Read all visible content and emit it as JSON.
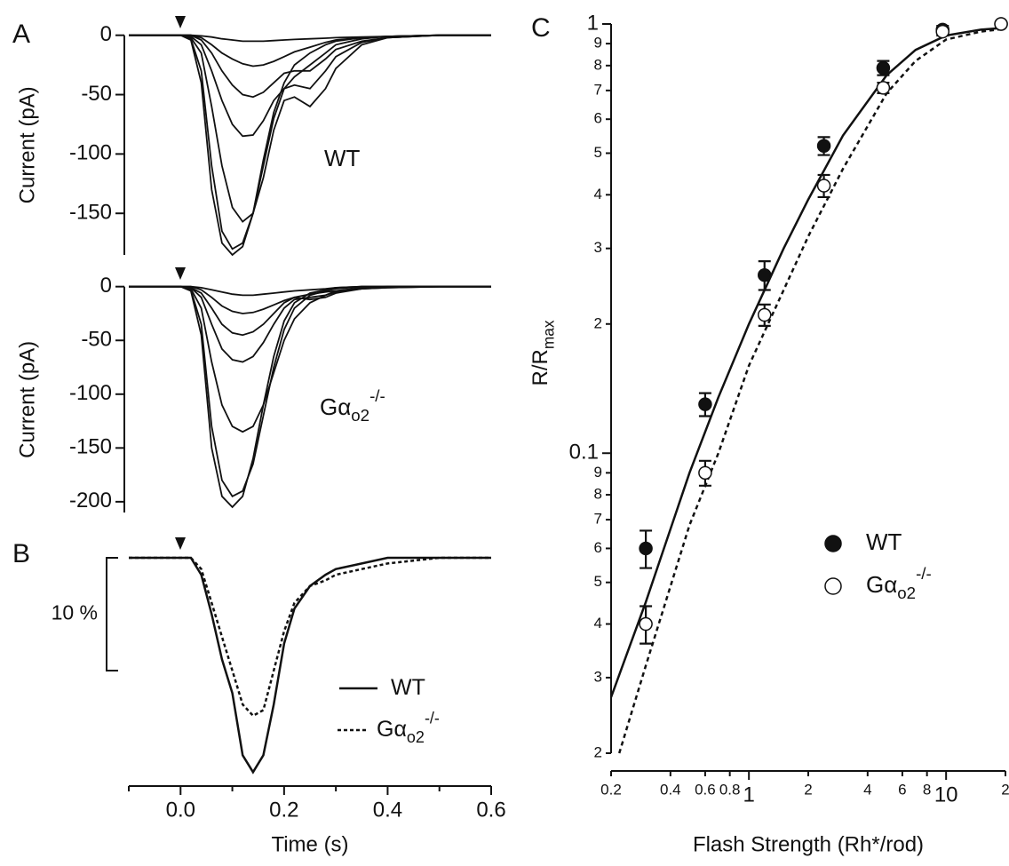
{
  "chart_data": [
    {
      "type": "line",
      "panel_label": "A",
      "y_label": "Current (pA)",
      "color": "#111",
      "annotation": {
        "text": "WT"
      },
      "xlim": [
        -0.1,
        0.6
      ],
      "ylim": [
        -185,
        8
      ],
      "yticks": [
        0,
        -50,
        -100,
        -150
      ],
      "x": [
        -0.1,
        -0.05,
        0,
        0.02,
        0.04,
        0.06,
        0.08,
        0.1,
        0.12,
        0.14,
        0.16,
        0.18,
        0.2,
        0.22,
        0.25,
        0.28,
        0.3,
        0.35,
        0.4,
        0.5,
        0.6
      ],
      "series": [
        {
          "values": [
            0,
            0,
            0,
            0,
            -0.5,
            -1.5,
            -3,
            -4,
            -5,
            -5,
            -5,
            -4.5,
            -4,
            -3.5,
            -3,
            -2.5,
            -2,
            -1.5,
            -1,
            0,
            0
          ]
        },
        {
          "values": [
            0,
            0,
            0,
            0,
            -2,
            -8,
            -15,
            -20,
            -24,
            -26,
            -25,
            -22,
            -18,
            -14,
            -10,
            -6,
            -4,
            -2,
            -1,
            0,
            0
          ]
        },
        {
          "values": [
            0,
            0,
            0,
            0,
            -4,
            -15,
            -30,
            -42,
            -50,
            -52,
            -48,
            -40,
            -32,
            -30,
            -30,
            -20,
            -12,
            -5,
            -2,
            0,
            0
          ]
        },
        {
          "values": [
            0,
            0,
            0,
            -1,
            -8,
            -30,
            -55,
            -75,
            -85,
            -84,
            -72,
            -55,
            -45,
            -42,
            -45,
            -30,
            -18,
            -6,
            -2,
            0,
            0
          ]
        },
        {
          "values": [
            0,
            0,
            0,
            -2,
            -15,
            -60,
            -110,
            -145,
            -157,
            -150,
            -120,
            -80,
            -55,
            -52,
            -60,
            -45,
            -28,
            -8,
            -2,
            0,
            0
          ]
        },
        {
          "values": [
            0,
            0,
            0,
            -3,
            -30,
            -110,
            -165,
            -180,
            -175,
            -150,
            -110,
            -70,
            -45,
            -35,
            -25,
            -15,
            -8,
            -3,
            -1,
            0,
            0
          ]
        },
        {
          "values": [
            0,
            0,
            0,
            -4,
            -40,
            -130,
            -175,
            -185,
            -178,
            -150,
            -105,
            -65,
            -40,
            -25,
            -15,
            -8,
            -5,
            -2,
            -1,
            0,
            0
          ]
        }
      ]
    },
    {
      "type": "line",
      "y_label": "Current (pA)",
      "color": "#111",
      "annotation": {
        "text": "Gα",
        "sub": "o2",
        "sup": "-/-"
      },
      "xlim": [
        -0.1,
        0.6
      ],
      "ylim": [
        -210,
        8
      ],
      "yticks": [
        0,
        -50,
        -100,
        -150,
        -200
      ],
      "x": [
        -0.1,
        -0.05,
        0,
        0.02,
        0.04,
        0.06,
        0.08,
        0.1,
        0.12,
        0.14,
        0.16,
        0.18,
        0.2,
        0.22,
        0.25,
        0.28,
        0.3,
        0.35,
        0.4,
        0.5,
        0.6
      ],
      "series": [
        {
          "values": [
            0,
            0,
            0,
            0,
            -1,
            -3,
            -5,
            -7,
            -8,
            -8,
            -7,
            -6,
            -5,
            -4,
            -3,
            -2,
            -1,
            0,
            0,
            0,
            0
          ]
        },
        {
          "values": [
            0,
            0,
            0,
            0,
            -3,
            -10,
            -18,
            -23,
            -25,
            -24,
            -21,
            -17,
            -13,
            -10,
            -7,
            -5,
            -4,
            -2,
            -1,
            0,
            0
          ]
        },
        {
          "values": [
            0,
            0,
            0,
            -1,
            -6,
            -20,
            -35,
            -43,
            -45,
            -42,
            -35,
            -25,
            -15,
            -10,
            -12,
            -10,
            -6,
            -2,
            -1,
            0,
            0
          ]
        },
        {
          "values": [
            0,
            0,
            0,
            -1,
            -10,
            -35,
            -58,
            -68,
            -70,
            -65,
            -52,
            -35,
            -20,
            -12,
            -10,
            -8,
            -5,
            -2,
            0,
            0,
            0
          ]
        },
        {
          "values": [
            0,
            0,
            0,
            -2,
            -20,
            -70,
            -110,
            -130,
            -135,
            -130,
            -110,
            -80,
            -50,
            -30,
            -15,
            -8,
            -4,
            -1,
            0,
            0,
            0
          ]
        },
        {
          "values": [
            0,
            0,
            0,
            -3,
            -35,
            -130,
            -180,
            -195,
            -190,
            -165,
            -120,
            -75,
            -40,
            -20,
            -8,
            -4,
            -2,
            0,
            0,
            0,
            0
          ]
        },
        {
          "values": [
            0,
            0,
            0,
            -4,
            -45,
            -150,
            -195,
            -205,
            -195,
            -160,
            -110,
            -65,
            -32,
            -15,
            -6,
            -3,
            -1,
            0,
            0,
            0,
            0
          ]
        }
      ]
    },
    {
      "type": "line",
      "panel_label": "B",
      "x_label": "Time (s)",
      "color": "#111",
      "scale_bar": {
        "value": 10,
        "label": "10 %"
      },
      "xlim": [
        -0.1,
        0.6
      ],
      "ylim": [
        -20,
        1.5
      ],
      "xticks": [
        {
          "value": 0,
          "label": "0.0"
        },
        0.2,
        0.4,
        0.6
      ],
      "xminorticks": [
        -0.1,
        0.1,
        0.3,
        0.5
      ],
      "x": [
        -0.1,
        -0.05,
        0,
        0.02,
        0.04,
        0.06,
        0.08,
        0.1,
        0.12,
        0.14,
        0.16,
        0.18,
        0.2,
        0.22,
        0.25,
        0.28,
        0.3,
        0.35,
        0.4,
        0.5,
        0.6
      ],
      "series": [
        {
          "name": "WT",
          "dash": false,
          "values": [
            0,
            0,
            0,
            0,
            -1.5,
            -5,
            -9,
            -12,
            -17.5,
            -19,
            -17.5,
            -13,
            -7.6,
            -4.5,
            -2.5,
            -1.5,
            -1,
            -0.5,
            0,
            0,
            0
          ]
        },
        {
          "name": "Gα",
          "name_sub": "o2",
          "name_sup": "-/-",
          "dash": true,
          "values": [
            0,
            0,
            0,
            0,
            -1,
            -4,
            -7,
            -10,
            -13,
            -14,
            -13.5,
            -10,
            -6.5,
            -4,
            -2.5,
            -2,
            -1.5,
            -1,
            -0.5,
            0,
            0
          ]
        }
      ]
    },
    {
      "type": "scatter",
      "panel_label": "C",
      "x_label": "Flash Strength (Rh*/rod)",
      "y_label": "R/R",
      "y_label_sub": "max",
      "color": "#111",
      "xscale": "log",
      "yscale": "log",
      "xlim": [
        0.2,
        20
      ],
      "ylim": [
        0.02,
        1
      ],
      "xticks": [
        0.2,
        0.4,
        0.6,
        0.8,
        1,
        2,
        4,
        6,
        8,
        10,
        {
          "value": 20,
          "label": "2"
        }
      ],
      "yticks": [
        {
          "value": 0.02,
          "label": "2"
        },
        {
          "value": 0.03,
          "label": "3"
        },
        {
          "value": 0.04,
          "label": "4"
        },
        {
          "value": 0.05,
          "label": "5"
        },
        {
          "value": 0.06,
          "label": "6"
        },
        {
          "value": 0.07,
          "label": "7"
        },
        {
          "value": 0.08,
          "label": "8"
        },
        {
          "value": 0.09,
          "label": "9"
        },
        0.1,
        {
          "value": 0.2,
          "label": "2"
        },
        {
          "value": 0.3,
          "label": "3"
        },
        {
          "value": 0.4,
          "label": "4"
        },
        {
          "value": 0.5,
          "label": "5"
        },
        {
          "value": 0.6,
          "label": "6"
        },
        {
          "value": 0.7,
          "label": "7"
        },
        {
          "value": 0.8,
          "label": "8"
        },
        {
          "value": 0.9,
          "label": "9"
        },
        1
      ],
      "series": [
        {
          "name": "WT",
          "marker": "filled",
          "x": [
            0.3,
            0.6,
            1.2,
            2.4,
            4.8,
            9.6,
            19
          ],
          "values": [
            0.06,
            0.13,
            0.26,
            0.52,
            0.79,
            0.97,
            1.0
          ],
          "errors": [
            0.006,
            0.008,
            0.02,
            0.025,
            0.03,
            0.02,
            0
          ]
        },
        {
          "name": "Gα",
          "name_sub": "o2",
          "name_sup": "-/-",
          "marker": "open",
          "x": [
            0.3,
            0.6,
            1.2,
            2.4,
            4.8,
            9.6,
            19
          ],
          "values": [
            0.04,
            0.09,
            0.21,
            0.42,
            0.71,
            0.96,
            1.0
          ],
          "errors": [
            0.004,
            0.006,
            0.012,
            0.025,
            0.02,
            0.02,
            0
          ]
        }
      ],
      "fits": [
        {
          "dash": false,
          "x": [
            0.2,
            0.3,
            0.5,
            0.7,
            1,
            1.5,
            2,
            3,
            5,
            7,
            10,
            15,
            20
          ],
          "values": [
            0.027,
            0.045,
            0.09,
            0.135,
            0.2,
            0.3,
            0.39,
            0.55,
            0.76,
            0.87,
            0.94,
            0.97,
            0.98
          ]
        },
        {
          "dash": true,
          "x": [
            0.22,
            0.3,
            0.5,
            0.7,
            1,
            1.5,
            2,
            3,
            5,
            7,
            10,
            15,
            20
          ],
          "values": [
            0.02,
            0.032,
            0.068,
            0.1,
            0.16,
            0.24,
            0.32,
            0.46,
            0.69,
            0.82,
            0.92,
            0.96,
            0.975
          ]
        }
      ]
    }
  ]
}
